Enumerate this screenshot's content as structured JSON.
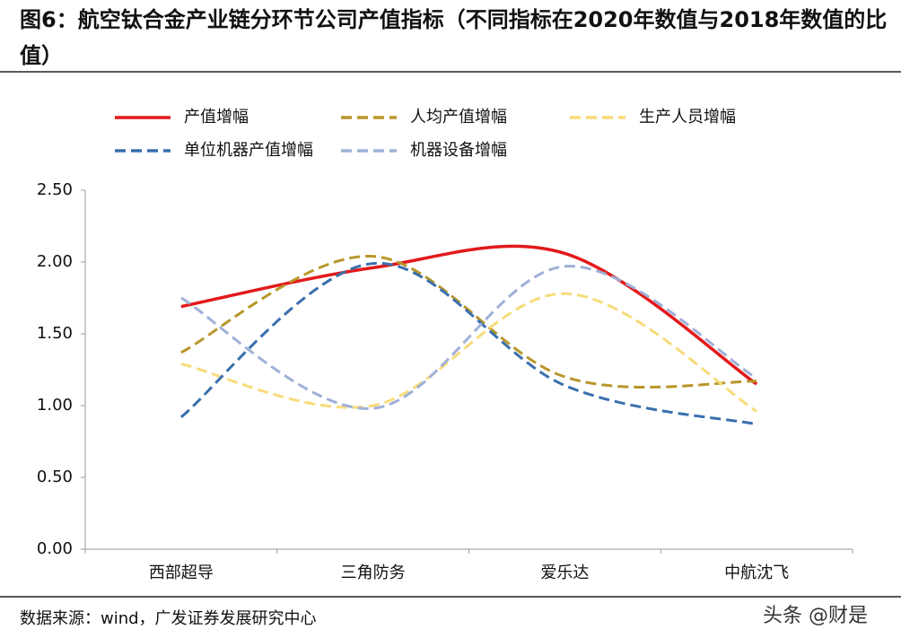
{
  "chart_data": {
    "type": "line",
    "title": "图6：航空钛合金产业链分环节公司产值指标（不同指标在2020年数值与2018年数值的比值）",
    "categories": [
      "西部超导",
      "三角防务",
      "爱乐达",
      "中航沈飞"
    ],
    "series": [
      {
        "name": "产值增幅",
        "color": "#e3191b",
        "dash": "solid",
        "values": [
          1.69,
          1.96,
          2.06,
          1.15
        ]
      },
      {
        "name": "人均产值增幅",
        "color": "#b8962a",
        "dash": "dashed",
        "values": [
          1.37,
          2.04,
          1.2,
          1.17
        ]
      },
      {
        "name": "生产人员增幅",
        "color": "#f7dc7a",
        "dash": "dashed",
        "values": [
          1.29,
          1.0,
          1.78,
          0.96
        ]
      },
      {
        "name": "单位机器产值增幅",
        "color": "#3a6fad",
        "dash": "dashed",
        "values": [
          0.92,
          1.99,
          1.14,
          0.87
        ]
      },
      {
        "name": "机器设备增幅",
        "color": "#9fb0d8",
        "dash": "dashed",
        "values": [
          1.75,
          0.98,
          1.97,
          1.19
        ]
      }
    ],
    "ylim": [
      0,
      2.5
    ],
    "yticks": [
      {
        "value": 0,
        "label": "0.00"
      },
      {
        "value": 0.5,
        "label": "0.50"
      },
      {
        "value": 1,
        "label": "1.00"
      },
      {
        "value": 1.5,
        "label": "1.50"
      },
      {
        "value": 2,
        "label": "2.00"
      },
      {
        "value": 2.5,
        "label": "2.50"
      }
    ],
    "smooth": true,
    "source": "数据来源：wind，广发证券发展研究中心",
    "watermark": "头条 @财是"
  }
}
